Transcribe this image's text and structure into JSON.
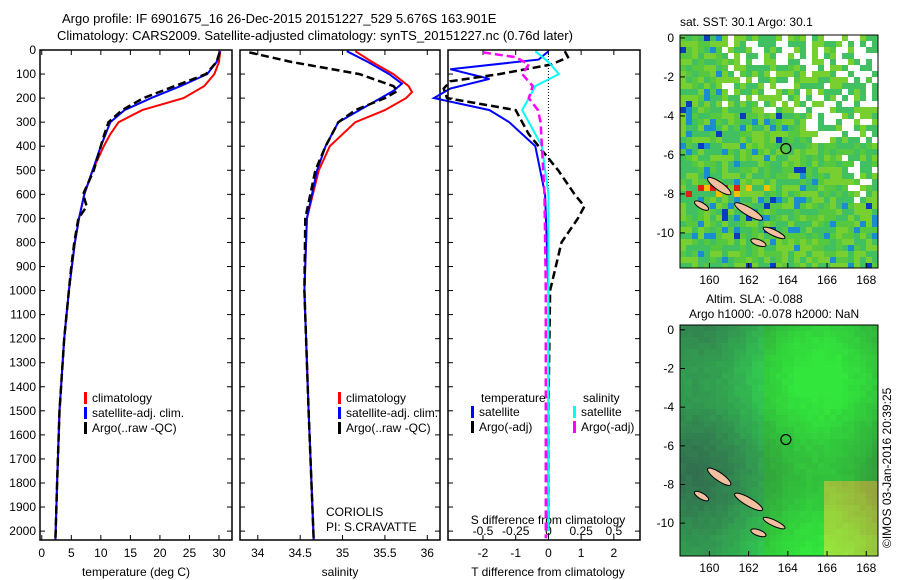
{
  "title_line1": "Argo profile: IF 6901675_16 26-Dec-2015 20151227_529 5.676S 163.901E",
  "title_line2": "Climatology: CARS2009. Satellite-adjusted climatology: synTS_20151227.nc (0.76d later)",
  "credit": "©IMOS 03-Jan-2016 20:39:25",
  "colors": {
    "climatology": "#ff0000",
    "satellite": "#0000ff",
    "argo": "#000000",
    "sal_satellite": "#00ffff",
    "sal_argo": "#ff00ff"
  },
  "chart_data": [
    {
      "type": "line",
      "name": "temperature",
      "xlabel": "temperature (deg C)",
      "xlim": [
        -0.3,
        32.2
      ],
      "xticks": [
        0,
        5,
        10,
        15,
        20,
        25,
        30
      ],
      "ylim": [
        0,
        2037
      ],
      "yticks": [
        0,
        100,
        200,
        300,
        400,
        500,
        600,
        700,
        800,
        900,
        1000,
        1100,
        1200,
        1300,
        1400,
        1500,
        1600,
        1700,
        1800,
        1900,
        2000
      ],
      "legend": [
        "climatology",
        "satellite-adj. clim.",
        "Argo(..raw -QC)"
      ],
      "series": [
        {
          "name": "climatology",
          "color": "#ff0000",
          "depth": [
            5,
            50,
            100,
            150,
            200,
            250,
            300,
            350,
            400,
            500,
            600,
            700,
            800,
            1000,
            1200,
            1500,
            1800,
            2037
          ],
          "values": [
            30.2,
            30,
            29.2,
            27.5,
            24,
            17,
            13,
            11.6,
            10.5,
            8.6,
            7.2,
            6.3,
            5.6,
            4.6,
            3.8,
            3.0,
            2.6,
            2.3
          ]
        },
        {
          "name": "satellite-adj. clim.",
          "color": "#0000ff",
          "depth": [
            5,
            50,
            100,
            150,
            200,
            250,
            300,
            350,
            400,
            500,
            600,
            700,
            800,
            1000,
            1200,
            1500,
            1800,
            2037
          ],
          "values": [
            30.2,
            29.6,
            28,
            23.5,
            18.5,
            14,
            11.6,
            10.8,
            10,
            8.6,
            7.2,
            6.3,
            5.6,
            4.6,
            3.8,
            3.0,
            2.6,
            2.3
          ]
        },
        {
          "name": "Argo(..raw -QC)",
          "color": "#000000",
          "dash": true,
          "depth": [
            10,
            50,
            100,
            150,
            200,
            250,
            300,
            350,
            400,
            500,
            600,
            650,
            700,
            800,
            900,
            1000,
            1200,
            1500,
            1800,
            2037
          ],
          "values": [
            30.1,
            29.6,
            27.8,
            22.5,
            17.2,
            13.6,
            11.3,
            10.6,
            10,
            8.8,
            7,
            7.6,
            6.2,
            5.5,
            5,
            4.6,
            3.8,
            3.0,
            2.6,
            2.3
          ]
        }
      ]
    },
    {
      "type": "line",
      "name": "salinity",
      "xlabel": "salinity",
      "xlim": [
        33.79,
        36.15
      ],
      "xticks": [
        34,
        34.5,
        35,
        35.5,
        36
      ],
      "ylim": [
        0,
        2037
      ],
      "legend": [
        "climatology",
        "satellite-adj. clim.",
        "Argo(..raw -QC)"
      ],
      "annotation": [
        "CORIOLIS",
        "PI: S.CRAVATTE"
      ],
      "series": [
        {
          "name": "climatology",
          "color": "#ff0000",
          "depth": [
            5,
            50,
            100,
            150,
            175,
            200,
            250,
            300,
            400,
            500,
            700,
            1000,
            1500,
            2037
          ],
          "values": [
            35.15,
            35.35,
            35.6,
            35.78,
            35.82,
            35.75,
            35.5,
            35.15,
            34.85,
            34.72,
            34.58,
            34.55,
            34.6,
            34.66
          ]
        },
        {
          "name": "satellite-adj. clim.",
          "color": "#0000ff",
          "depth": [
            5,
            50,
            100,
            140,
            170,
            200,
            250,
            300,
            400,
            500,
            700,
            1000,
            1500,
            2037
          ],
          "values": [
            35.05,
            35.3,
            35.55,
            35.7,
            35.6,
            35.45,
            35.2,
            34.95,
            34.8,
            34.7,
            34.58,
            34.55,
            34.6,
            34.66
          ]
        },
        {
          "name": "Argo(..raw -QC)",
          "color": "#000000",
          "dash": true,
          "depth": [
            10,
            50,
            100,
            150,
            170,
            200,
            250,
            300,
            400,
            500,
            700,
            1000,
            1500,
            2037
          ],
          "values": [
            33.9,
            34.4,
            35.2,
            35.6,
            35.65,
            35.5,
            35.15,
            34.95,
            34.8,
            34.68,
            34.56,
            34.55,
            34.6,
            34.66
          ]
        }
      ]
    },
    {
      "type": "line",
      "name": "difference",
      "xlabel": "T difference from climatology",
      "xlabel2": "S difference from climatology",
      "xlim": [
        -3.07,
        2.8
      ],
      "xticks": [
        -2,
        -1,
        0,
        1,
        2
      ],
      "xticks2": [
        -0.5,
        -0.25,
        0,
        0.25,
        0.5
      ],
      "legend_headers": [
        "temperature",
        "salinity"
      ],
      "legend": [
        "satellite",
        "Argo(-adj)",
        "satellite",
        "Argo(-adj)"
      ],
      "series": [
        {
          "name": "T satellite",
          "color": "#0000ff",
          "unit": "T",
          "depth": [
            5,
            40,
            80,
            120,
            160,
            200,
            250,
            300,
            400,
            600,
            1000,
            1500,
            2000
          ],
          "values": [
            0,
            -0.3,
            -3,
            -1.8,
            -3,
            -3.5,
            -1.8,
            -1.2,
            -0.4,
            -0.1,
            0,
            0,
            0
          ]
        },
        {
          "name": "T Argo(-adj)",
          "color": "#000000",
          "dash": true,
          "unit": "T",
          "depth": [
            5,
            30,
            60,
            100,
            130,
            160,
            200,
            250,
            300,
            350,
            400,
            500,
            600,
            650,
            700,
            800,
            1000,
            1500,
            2000
          ],
          "values": [
            0.5,
            0.6,
            0.1,
            -1.5,
            -3,
            -3.2,
            -3.1,
            -1,
            -0.8,
            -0.6,
            -0.3,
            0.3,
            0.8,
            1.1,
            0.9,
            0.4,
            0.05,
            0,
            0
          ]
        },
        {
          "name": "S satellite",
          "color": "#00ffff",
          "unit": "S",
          "depth": [
            5,
            50,
            100,
            150,
            200,
            250,
            300,
            400,
            600,
            1000,
            1500,
            2000
          ],
          "values": [
            -0.1,
            0,
            0.08,
            -0.1,
            -0.15,
            -0.2,
            -0.15,
            -0.05,
            0,
            0,
            0,
            0
          ]
        },
        {
          "name": "S Argo(-adj)",
          "color": "#ff00ff",
          "dash": true,
          "unit": "S",
          "depth": [
            10,
            30,
            60,
            100,
            150,
            200,
            250,
            300,
            400,
            600,
            1000,
            1500,
            2030
          ],
          "values": [
            -0.5,
            -0.25,
            -0.15,
            -0.2,
            -0.12,
            -0.15,
            -0.08,
            -0.06,
            -0.05,
            -0.03,
            -0.02,
            -0.02,
            -0.02
          ]
        }
      ]
    },
    {
      "type": "heatmap",
      "name": "sst-map",
      "title": "sat. SST: 30.1 Argo: 30.1",
      "xlim": [
        158.5,
        168.6
      ],
      "ylim": [
        -11.8,
        0.15
      ],
      "xticks": [
        160,
        162,
        164,
        166,
        168
      ],
      "yticks": [
        0,
        -2,
        -4,
        -6,
        -8,
        -10
      ],
      "marker": [
        163.901,
        -5.676
      ]
    },
    {
      "type": "heatmap",
      "name": "sla-map",
      "title": [
        "Altim. SLA: -0.088",
        "Argo h1000: -0.078 h2000: NaN"
      ],
      "xlim": [
        158.5,
        168.6
      ],
      "ylim": [
        -11.7,
        0.25
      ],
      "xticks": [
        160,
        162,
        164,
        166,
        168
      ],
      "yticks": [
        0,
        -2,
        -4,
        -6,
        -8,
        -10
      ],
      "marker": [
        163.901,
        -5.676
      ]
    }
  ]
}
